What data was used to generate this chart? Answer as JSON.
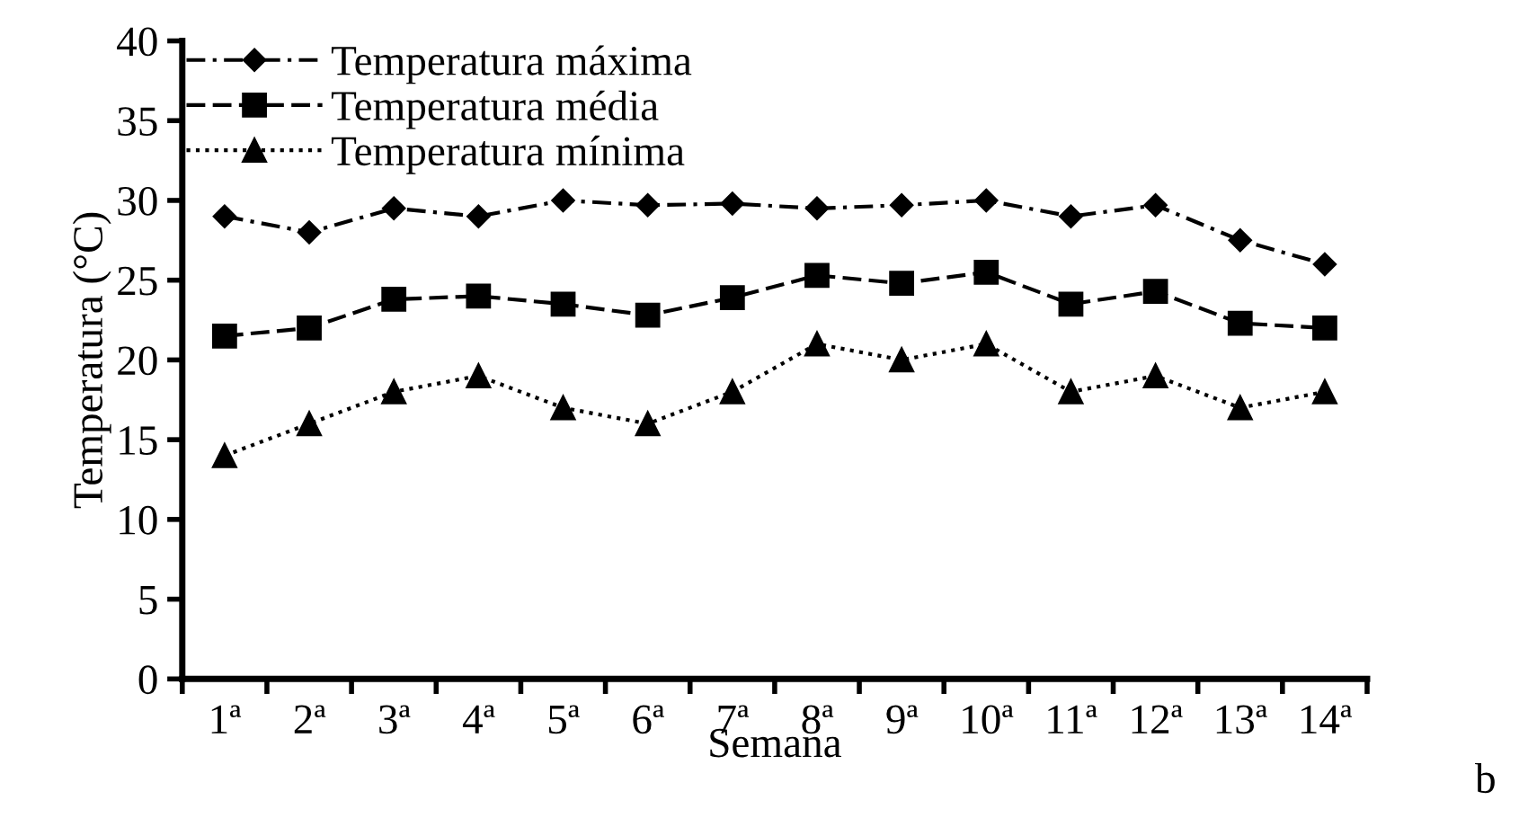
{
  "chart_data": {
    "type": "line",
    "xlabel": "Semana",
    "ylabel": "Temperatura (°C)",
    "categories": [
      "1ª",
      "2ª",
      "3ª",
      "4ª",
      "5ª",
      "6ª",
      "7ª",
      "8ª",
      "9ª",
      "10ª",
      "11ª",
      "12ª",
      "13ª",
      "14ª"
    ],
    "series": [
      {
        "name": "Temperatura máxima",
        "color": "#000000",
        "marker": "diamond",
        "line_style": "dashdot",
        "values": [
          29,
          28,
          29.5,
          29,
          30,
          29.7,
          29.8,
          29.5,
          29.7,
          30,
          29,
          29.7,
          27.5,
          26
        ]
      },
      {
        "name": "Temperatura média",
        "color": "#000000",
        "marker": "square",
        "line_style": "dashed",
        "values": [
          21.5,
          22,
          23.8,
          24,
          23.5,
          22.8,
          23.9,
          25.3,
          24.8,
          25.5,
          23.5,
          24.3,
          22.3,
          22
        ]
      },
      {
        "name": "Temperatura mínima",
        "color": "#000000",
        "marker": "triangle",
        "line_style": "dotted",
        "values": [
          14,
          16,
          18,
          19,
          17,
          16,
          18,
          21,
          20,
          21,
          18,
          19,
          17,
          18
        ]
      }
    ],
    "ylim": [
      0,
      40
    ],
    "yticks": [
      0,
      5,
      10,
      15,
      20,
      25,
      30,
      35,
      40
    ],
    "grid": false,
    "legend": "top left",
    "annotations": [
      "b"
    ]
  }
}
